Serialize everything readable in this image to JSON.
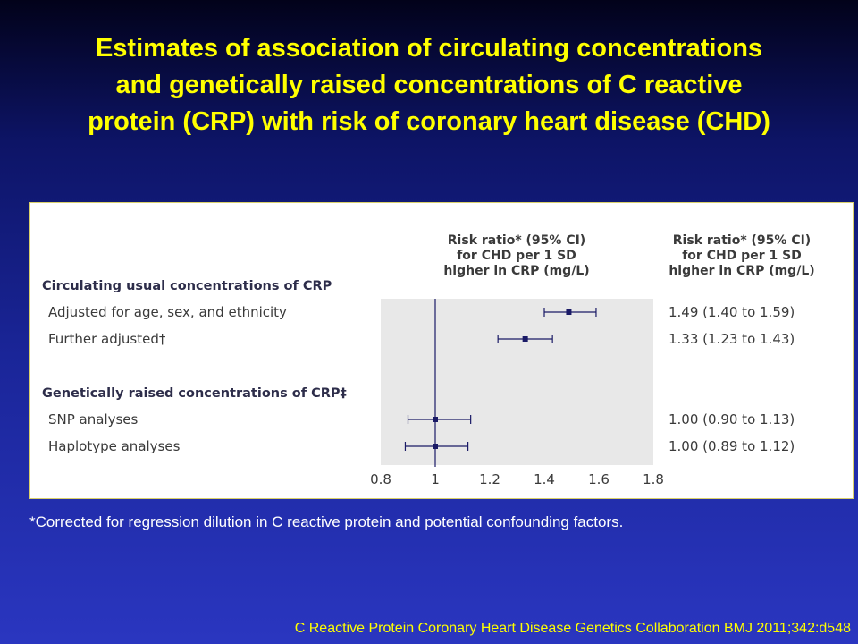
{
  "slide": {
    "title_lines": [
      "Estimates of association of circulating concentrations",
      "and genetically raised concentrations of C reactive",
      "protein (CRP) with risk of coronary heart disease (CHD)"
    ],
    "footnote": "*Corrected for regression dilution in C reactive protein and potential confounding factors.",
    "citation": "C Reactive Protein Coronary Heart Disease Genetics Collaboration  BMJ 2011;342:d548"
  },
  "colors": {
    "title": "#ffff00",
    "marker": "#1a1a66",
    "plot_background": "#e8e8e8",
    "citation": "#ffff00",
    "footnote": "#ffffff"
  },
  "chart_data": {
    "type": "forest",
    "plot_header": [
      "Risk ratio* (95% CI)",
      "for CHD per 1 SD",
      "higher ln CRP (mg/L)"
    ],
    "value_header": [
      "Risk ratio* (95% CI)",
      "for CHD per 1 SD",
      "higher ln CRP (mg/L)"
    ],
    "x_ticks": [
      "0.8",
      "1",
      "1.2",
      "1.4",
      "1.6",
      "1.8"
    ],
    "xlim": [
      0.8,
      1.8
    ],
    "reference_line": 1.0,
    "groups": [
      {
        "label": "Circulating usual concentrations of CRP",
        "rows": [
          {
            "label": "Adjusted for age, sex, and ethnicity",
            "estimate": 1.49,
            "lower": 1.4,
            "upper": 1.59,
            "text": "1.49 (1.40 to 1.59)"
          },
          {
            "label": "Further adjusted†",
            "estimate": 1.33,
            "lower": 1.23,
            "upper": 1.43,
            "text": "1.33 (1.23 to 1.43)"
          }
        ]
      },
      {
        "label": "Genetically raised concentrations of CRP‡",
        "rows": [
          {
            "label": "SNP analyses",
            "estimate": 1.0,
            "lower": 0.9,
            "upper": 1.13,
            "text": "1.00 (0.90 to 1.13)"
          },
          {
            "label": "Haplotype analyses",
            "estimate": 1.0,
            "lower": 0.89,
            "upper": 1.12,
            "text": "1.00 (0.89 to 1.12)"
          }
        ]
      }
    ]
  }
}
